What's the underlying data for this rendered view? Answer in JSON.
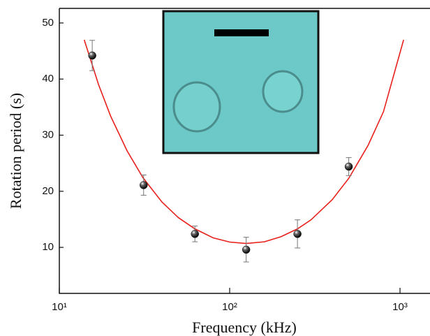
{
  "chart_data": {
    "type": "scatter",
    "xlabel": "Frequency (kHz)",
    "ylabel": "Rotation period (s)",
    "xscale": "log",
    "xlim": [
      10,
      1500
    ],
    "ylim": [
      1.8,
      52.6
    ],
    "xticks": [
      {
        "value": 10,
        "label": "10¹"
      },
      {
        "value": 100,
        "label": "10²"
      },
      {
        "value": 1000,
        "label": "10³"
      }
    ],
    "yticks": [
      10,
      20,
      30,
      40,
      50
    ],
    "series": [
      {
        "mode": "points",
        "color": "#111111",
        "x": [
          15.6,
          31.25,
          62.5,
          125,
          250,
          500
        ],
        "values": [
          44.2,
          21.1,
          12.4,
          9.6,
          12.4,
          24.4
        ],
        "errors": [
          2.7,
          1.8,
          1.4,
          2.2,
          2.5,
          1.6
        ]
      },
      {
        "mode": "line",
        "color": "#e8201c",
        "x": [
          14,
          17,
          20,
          25,
          31,
          40,
          50,
          62.5,
          80,
          100,
          125,
          160,
          200,
          250,
          300,
          400,
          500,
          650,
          800,
          1050
        ],
        "values": [
          47.0,
          39.0,
          33.4,
          27.2,
          22.4,
          18.1,
          15.3,
          13.3,
          11.7,
          10.95,
          10.7,
          11.0,
          11.9,
          13.3,
          14.9,
          18.5,
          22.3,
          28.2,
          34.2,
          47.0
        ]
      }
    ]
  }
}
